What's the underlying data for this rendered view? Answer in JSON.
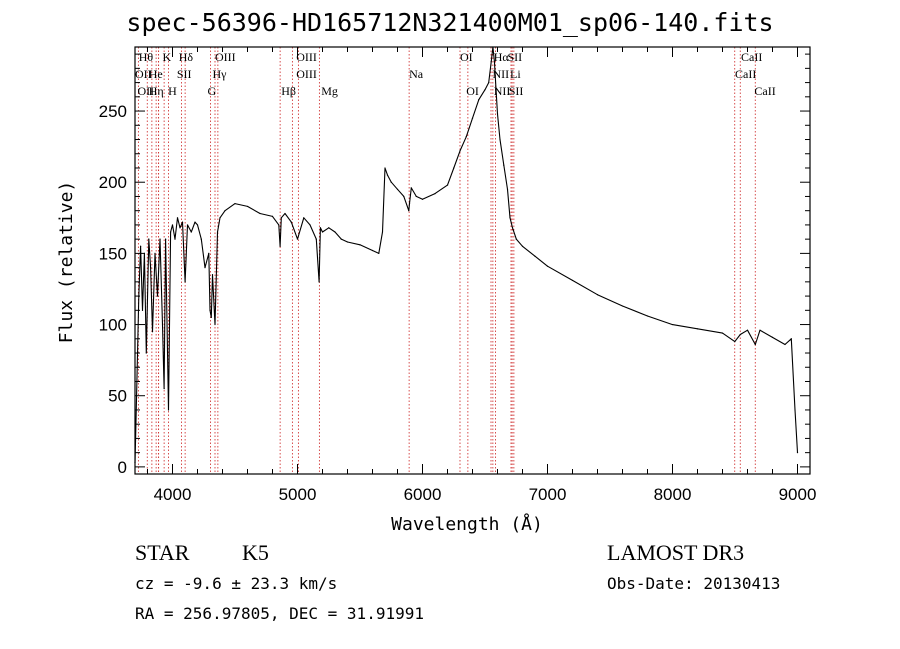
{
  "chart_data": {
    "type": "line",
    "title": "spec-56396-HD165712N321400M01_sp06-140.fits",
    "xlabel": "Wavelength (Å)",
    "ylabel": "Flux (relative)",
    "xlim": [
      3700,
      9100
    ],
    "ylim": [
      -5,
      295
    ],
    "xticks": [
      4000,
      5000,
      6000,
      7000,
      8000,
      9000
    ],
    "yticks": [
      0,
      50,
      100,
      150,
      200,
      250
    ],
    "series": [
      {
        "name": "spectrum",
        "color": "#000000",
        "x": [
          3700,
          3705,
          3715,
          3730,
          3745,
          3760,
          3775,
          3790,
          3810,
          3825,
          3840,
          3860,
          3880,
          3900,
          3920,
          3933,
          3945,
          3968,
          3985,
          4000,
          4020,
          4040,
          4060,
          4080,
          4101,
          4120,
          4150,
          4180,
          4200,
          4230,
          4260,
          4290,
          4300,
          4310,
          4320,
          4340,
          4360,
          4380,
          4420,
          4500,
          4600,
          4700,
          4800,
          4850,
          4861,
          4870,
          4900,
          4950,
          5000,
          5050,
          5100,
          5150,
          5173,
          5183,
          5200,
          5250,
          5300,
          5350,
          5400,
          5500,
          5600,
          5650,
          5680,
          5700,
          5720,
          5750,
          5800,
          5850,
          5890,
          5896,
          5910,
          5950,
          6000,
          6100,
          6200,
          6250,
          6300,
          6350,
          6400,
          6450,
          6500,
          6530,
          6550,
          6563,
          6575,
          6590,
          6600,
          6620,
          6650,
          6680,
          6700,
          6720,
          6750,
          6800,
          6900,
          7000,
          7200,
          7400,
          7600,
          7800,
          8000,
          8200,
          8400,
          8498,
          8542,
          8600,
          8662,
          8700,
          8800,
          8900,
          8950,
          8980,
          9000
        ],
        "values": [
          3,
          20,
          60,
          120,
          155,
          110,
          150,
          80,
          160,
          140,
          95,
          150,
          120,
          160,
          100,
          55,
          160,
          40,
          165,
          170,
          160,
          175,
          168,
          172,
          130,
          170,
          165,
          172,
          170,
          160,
          140,
          150,
          110,
          105,
          135,
          100,
          165,
          175,
          180,
          185,
          183,
          178,
          176,
          170,
          155,
          175,
          178,
          172,
          160,
          175,
          170,
          160,
          130,
          168,
          165,
          168,
          165,
          160,
          158,
          156,
          152,
          150,
          165,
          210,
          205,
          200,
          195,
          190,
          180,
          185,
          196,
          190,
          188,
          192,
          198,
          210,
          222,
          232,
          245,
          258,
          265,
          270,
          285,
          295,
          285,
          262,
          248,
          230,
          212,
          195,
          175,
          168,
          160,
          155,
          148,
          141,
          131,
          121,
          113,
          106,
          100,
          97,
          94,
          88,
          93,
          96,
          86,
          96,
          91,
          86,
          90,
          40,
          10
        ]
      }
    ],
    "lines": [
      {
        "name": "Hθ",
        "wave": 3798
      },
      {
        "name": "OII",
        "wave": 3727
      },
      {
        "name": "OIII",
        "wave": 3869
      },
      {
        "name": "He",
        "wave": 3889
      },
      {
        "name": "Hη",
        "wave": 3835
      },
      {
        "name": "K",
        "wave": 3933
      },
      {
        "name": "HeI",
        "wave": 3889
      },
      {
        "name": "H",
        "wave": 3968
      },
      {
        "name": "SII",
        "wave": 4072
      },
      {
        "name": "Hδ",
        "wave": 4101
      },
      {
        "name": "OIII",
        "wave": 4363
      },
      {
        "name": "Hγ",
        "wave": 4340
      },
      {
        "name": "G",
        "wave": 4304
      },
      {
        "name": "Hβ",
        "wave": 4861
      },
      {
        "name": "OIII",
        "wave": 4959
      },
      {
        "name": "OIII",
        "wave": 5007
      },
      {
        "name": "Mg",
        "wave": 5175
      },
      {
        "name": "Na",
        "wave": 5893
      },
      {
        "name": "OI",
        "wave": 6300
      },
      {
        "name": "OI",
        "wave": 6363
      },
      {
        "name": "Hα",
        "wave": 6563
      },
      {
        "name": "NII",
        "wave": 6548
      },
      {
        "name": "NII",
        "wave": 6584
      },
      {
        "name": "SII",
        "wave": 6717
      },
      {
        "name": "Li",
        "wave": 6708
      },
      {
        "name": "SII",
        "wave": 6731
      },
      {
        "name": "CaII",
        "wave": 8498
      },
      {
        "name": "CaII",
        "wave": 8542
      },
      {
        "name": "CaII",
        "wave": 8662
      }
    ],
    "line_label_rows": [
      [
        {
          "text": "Hθ",
          "wave": 3730
        },
        {
          "text": "K",
          "wave": 3920
        },
        {
          "text": "Hδ",
          "wave": 4050
        },
        {
          "text": "OIII",
          "wave": 4340
        },
        {
          "text": "OIII",
          "wave": 4990
        },
        {
          "text": "OI",
          "wave": 6300
        },
        {
          "text": "Hα",
          "wave": 6570
        },
        {
          "text": "SII",
          "wave": 6680
        },
        {
          "text": "CaII",
          "wave": 8548
        }
      ],
      [
        {
          "text": "OII",
          "wave": 3700
        },
        {
          "text": "He",
          "wave": 3810
        },
        {
          "text": "SII",
          "wave": 4035
        },
        {
          "text": "Hγ",
          "wave": 4320
        },
        {
          "text": "OIII",
          "wave": 4990
        },
        {
          "text": "Na",
          "wave": 5893
        },
        {
          "text": "NII",
          "wave": 6560
        },
        {
          "text": "Li",
          "wave": 6700
        },
        {
          "text": "CaII",
          "wave": 8500
        }
      ],
      [
        {
          "text": "OII",
          "wave": 3720
        },
        {
          "text": "Hη",
          "wave": 3810
        },
        {
          "text": "H",
          "wave": 3965
        },
        {
          "text": "G",
          "wave": 4280
        },
        {
          "text": "Hβ",
          "wave": 4870
        },
        {
          "text": "Mg",
          "wave": 5190
        },
        {
          "text": "OI",
          "wave": 6350
        },
        {
          "text": "NII",
          "wave": 6570
        },
        {
          "text": "SII",
          "wave": 6690
        },
        {
          "text": "CaII",
          "wave": 8655
        }
      ]
    ]
  },
  "info": {
    "object_class": "STAR",
    "subclass": "K5",
    "survey": "LAMOST DR3",
    "cz": "cz = -9.6 ± 23.3 km/s",
    "obs_date": "Obs-Date: 20130413",
    "coords": "RA = 256.97805, DEC =  31.91991"
  },
  "colors": {
    "axis": "#000000",
    "spectrum": "#000000",
    "line_marker": "#cc2222",
    "background": "#ffffff"
  }
}
